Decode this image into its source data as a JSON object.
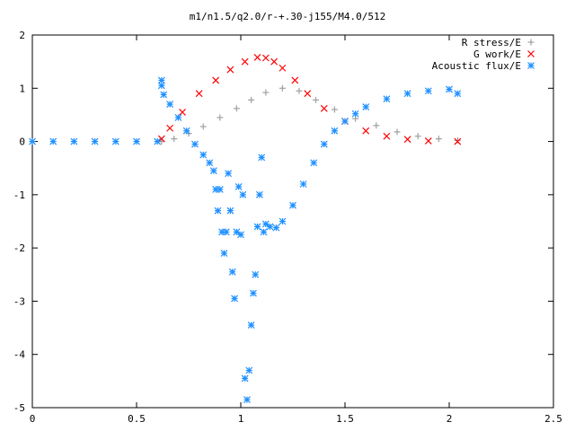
{
  "chart_data": {
    "type": "scatter",
    "title": "m1/n1.5/q2.0/r-+.30-j155/M4.0/512",
    "xlim": [
      0,
      2.5
    ],
    "ylim": [
      -5,
      2
    ],
    "x_ticks": [
      "0",
      "0.5",
      "1",
      "1.5",
      "2",
      "2.5"
    ],
    "y_ticks": [
      "2",
      "1",
      "0",
      "-1",
      "-2",
      "-3",
      "-4",
      "-5"
    ],
    "grid": false,
    "legend_position": "top-right",
    "series": [
      {
        "name": "R stress/E",
        "color": "#a0a0a0",
        "marker": "plus",
        "x": [
          0.62,
          0.68,
          0.75,
          0.82,
          0.9,
          0.98,
          1.05,
          1.12,
          1.2,
          1.28,
          1.36,
          1.45,
          1.55,
          1.65,
          1.75,
          1.85,
          1.95,
          2.04
        ],
        "y": [
          0.0,
          0.05,
          0.15,
          0.28,
          0.45,
          0.62,
          0.78,
          0.92,
          1.0,
          0.95,
          0.78,
          0.6,
          0.43,
          0.3,
          0.18,
          0.1,
          0.05,
          0.02
        ]
      },
      {
        "name": "G work/E",
        "color": "#ff0000",
        "marker": "cross",
        "x": [
          0.62,
          0.66,
          0.72,
          0.8,
          0.88,
          0.95,
          1.02,
          1.08,
          1.12,
          1.16,
          1.2,
          1.26,
          1.32,
          1.4,
          1.5,
          1.6,
          1.7,
          1.8,
          1.9,
          2.04
        ],
        "y": [
          0.05,
          0.25,
          0.55,
          0.9,
          1.15,
          1.35,
          1.5,
          1.58,
          1.57,
          1.5,
          1.38,
          1.15,
          0.9,
          0.62,
          0.38,
          0.2,
          0.1,
          0.04,
          0.01,
          0.0
        ]
      },
      {
        "name": "Acoustic flux/E",
        "color": "#1e90ff",
        "marker": "star",
        "x": [
          0.0,
          0.1,
          0.2,
          0.3,
          0.4,
          0.5,
          0.6,
          0.62,
          0.62,
          0.63,
          0.66,
          0.7,
          0.74,
          0.78,
          0.82,
          0.85,
          0.87,
          0.88,
          0.89,
          0.9,
          0.91,
          0.92,
          0.93,
          0.94,
          0.95,
          0.96,
          0.97,
          0.98,
          0.99,
          1.0,
          1.01,
          1.02,
          1.03,
          1.04,
          1.05,
          1.06,
          1.07,
          1.08,
          1.09,
          1.1,
          1.11,
          1.12,
          1.14,
          1.17,
          1.2,
          1.25,
          1.3,
          1.35,
          1.4,
          1.45,
          1.5,
          1.55,
          1.6,
          1.7,
          1.8,
          1.9,
          2.0,
          2.04
        ],
        "y": [
          0.0,
          0.0,
          0.0,
          0.0,
          0.0,
          0.0,
          0.0,
          1.15,
          1.05,
          0.88,
          0.7,
          0.45,
          0.2,
          -0.05,
          -0.25,
          -0.4,
          -0.55,
          -0.9,
          -1.3,
          -0.9,
          -1.7,
          -2.1,
          -1.7,
          -0.6,
          -1.3,
          -2.45,
          -2.95,
          -1.7,
          -0.85,
          -1.75,
          -1.0,
          -4.45,
          -4.85,
          -4.3,
          -3.45,
          -2.85,
          -2.5,
          -1.6,
          -1.0,
          -0.3,
          -1.7,
          -1.55,
          -1.6,
          -1.62,
          -1.5,
          -1.2,
          -0.8,
          -0.4,
          -0.05,
          0.2,
          0.38,
          0.52,
          0.65,
          0.8,
          0.9,
          0.95,
          0.98,
          0.9
        ]
      }
    ]
  }
}
